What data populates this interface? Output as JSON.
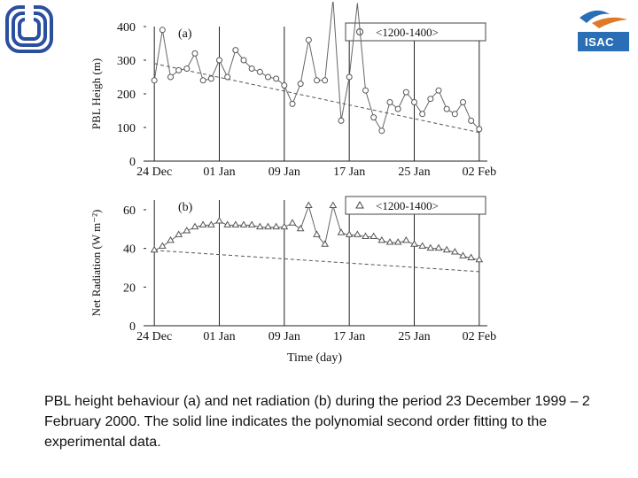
{
  "logos": {
    "left": {
      "icon": "cnr-logo-icon",
      "color": "#2a4f9e"
    },
    "right": {
      "icon": "isac-logo-icon",
      "text": "ISAC",
      "color": "#2a6fb6"
    }
  },
  "x_label": "Time (day)",
  "caption": "PBL height behaviour (a) and net radiation (b) during the period 23 December 1999 – 2 February 2000. The solid line indicates the polynomial second order fitting to the experimental data.",
  "chart_data": [
    {
      "type": "line",
      "panel_label": "(a)",
      "ylabel": "PBL Heigh (m)",
      "ylim": [
        0,
        400
      ],
      "yticks": [
        0,
        100,
        200,
        300,
        400
      ],
      "xlim": [
        23,
        65
      ],
      "xticks": [
        24,
        32,
        40,
        48,
        56,
        64
      ],
      "xtick_labels": [
        "24 Dec",
        "01 Jan",
        "09 Jan",
        "17 Jan",
        "25 Jan",
        "02 Feb"
      ],
      "legend": {
        "label": "<1200-1400>",
        "marker": "circle",
        "position": "top-right"
      },
      "grid": "vertical",
      "series": [
        {
          "name": "<1200-1400>",
          "x": [
            24,
            25,
            26,
            27,
            28,
            29,
            30,
            31,
            32,
            33,
            34,
            35,
            36,
            37,
            38,
            39,
            40,
            41,
            42,
            43,
            44,
            45,
            46,
            47,
            48,
            49,
            50,
            51,
            52,
            53,
            54,
            55,
            56,
            57,
            58,
            59,
            60,
            61,
            62,
            63,
            64
          ],
          "y": [
            240,
            390,
            250,
            270,
            275,
            320,
            240,
            245,
            300,
            250,
            330,
            300,
            275,
            265,
            250,
            245,
            225,
            170,
            230,
            360,
            240,
            240,
            480,
            120,
            250,
            470,
            210,
            130,
            90,
            175,
            155,
            205,
            175,
            140,
            185,
            210,
            155,
            140,
            175,
            120,
            95
          ]
        },
        {
          "name": "",
          "x": [
            24,
            64
          ],
          "y": [
            290,
            85
          ]
        }
      ]
    },
    {
      "type": "line",
      "panel_label": "(b)",
      "ylabel": "Net Radiation (W m⁻²)",
      "ylim": [
        0,
        65
      ],
      "yticks": [
        0,
        20,
        40,
        60
      ],
      "xlim": [
        23,
        65
      ],
      "xticks": [
        24,
        32,
        40,
        48,
        56,
        64
      ],
      "xtick_labels": [
        "24 Dec",
        "01 Jan",
        "09 Jan",
        "17 Jan",
        "25 Jan",
        "02 Feb"
      ],
      "legend": {
        "label": "<1200-1400>",
        "marker": "triangle",
        "position": "top-right"
      },
      "grid": "vertical",
      "series": [
        {
          "name": "<1200-1400>",
          "x": [
            24,
            25,
            26,
            27,
            28,
            29,
            30,
            31,
            32,
            33,
            34,
            35,
            36,
            37,
            38,
            39,
            40,
            41,
            42,
            43,
            44,
            45,
            46,
            47,
            48,
            49,
            50,
            51,
            52,
            53,
            54,
            55,
            56,
            57,
            58,
            59,
            60,
            61,
            62,
            63,
            64
          ],
          "y": [
            39,
            41,
            44,
            47,
            49,
            51,
            52,
            52,
            54,
            52,
            52,
            52,
            52,
            51,
            51,
            51,
            51,
            53,
            50,
            62,
            47,
            42,
            62,
            48,
            47,
            47,
            46,
            46,
            44,
            43,
            43,
            44,
            42,
            41,
            40,
            40,
            39,
            38,
            36,
            35,
            34
          ]
        },
        {
          "name": "",
          "x": [
            24,
            64
          ],
          "y": [
            39,
            28
          ]
        }
      ]
    }
  ]
}
